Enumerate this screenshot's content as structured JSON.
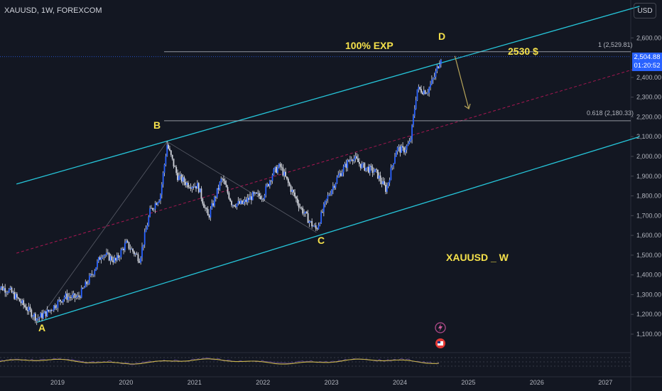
{
  "header": {
    "title": "XAUUSD, 1W, FOREXCOM",
    "currency_button": "USD"
  },
  "price_tag": {
    "price": "2,504.88",
    "countdown": "01:20:52"
  },
  "colors": {
    "background": "#131722",
    "channel": "#26c6da",
    "candle": "#2962ff",
    "candle_wick": "#e0e3eb",
    "midline": "#c2185b",
    "fib_line": "#b2b5be",
    "annotation_text": "#f5e14b",
    "projection_arrow": "#b8a55a",
    "oscillator": "#c9b54a",
    "axis_text": "#b2b5be",
    "price_tag_bg": "#2962ff"
  },
  "annotations": {
    "point_a": "A",
    "point_b": "B",
    "point_c": "C",
    "point_d": "D",
    "exp_label": "100% EXP",
    "target_label": "2530 $",
    "symbol_label": "XAUUSD _ W",
    "fib_1": "1 (2,529.81)",
    "fib_0618": "0.618 (2,180.33)"
  },
  "chart_data": {
    "type": "candlestick",
    "title": "XAUUSD, 1W, FOREXCOM",
    "x_ticks": [
      "2019",
      "2020",
      "2021",
      "2022",
      "2023",
      "2024",
      "2025",
      "2026",
      "2027"
    ],
    "y_ticks": [
      "1,100.00",
      "1,200.00",
      "1,300.00",
      "1,400.00",
      "1,500.00",
      "1,600.00",
      "1,700.00",
      "1,800.00",
      "1,900.00",
      "2,000.00",
      "2,100.00",
      "2,200.00",
      "2,300.00",
      "2,400.00",
      "2,600.00"
    ],
    "y_range": [
      1040,
      2700
    ],
    "x_range": [
      2018.1,
      2027.5
    ],
    "price_path": [
      [
        2018.1,
        1345
      ],
      [
        2018.3,
        1320
      ],
      [
        2018.55,
        1230
      ],
      [
        2018.7,
        1180
      ],
      [
        2018.85,
        1210
      ],
      [
        2019.1,
        1290
      ],
      [
        2019.3,
        1285
      ],
      [
        2019.5,
        1400
      ],
      [
        2019.65,
        1510
      ],
      [
        2019.85,
        1470
      ],
      [
        2020.0,
        1560
      ],
      [
        2020.2,
        1480
      ],
      [
        2020.35,
        1720
      ],
      [
        2020.5,
        1800
      ],
      [
        2020.6,
        2060
      ],
      [
        2020.75,
        1900
      ],
      [
        2020.9,
        1860
      ],
      [
        2021.05,
        1850
      ],
      [
        2021.2,
        1690
      ],
      [
        2021.4,
        1890
      ],
      [
        2021.55,
        1760
      ],
      [
        2021.7,
        1760
      ],
      [
        2021.85,
        1800
      ],
      [
        2022.0,
        1800
      ],
      [
        2022.15,
        1920
      ],
      [
        2022.25,
        1950
      ],
      [
        2022.4,
        1840
      ],
      [
        2022.55,
        1740
      ],
      [
        2022.7,
        1660
      ],
      [
        2022.78,
        1630
      ],
      [
        2022.95,
        1800
      ],
      [
        2023.1,
        1900
      ],
      [
        2023.3,
        2000
      ],
      [
        2023.45,
        1950
      ],
      [
        2023.65,
        1920
      ],
      [
        2023.8,
        1830
      ],
      [
        2023.95,
        2040
      ],
      [
        2024.05,
        2030
      ],
      [
        2024.15,
        2070
      ],
      [
        2024.25,
        2340
      ],
      [
        2024.4,
        2330
      ],
      [
        2024.5,
        2400
      ],
      [
        2024.6,
        2505
      ]
    ],
    "channel_upper": [
      [
        2018.4,
        1860
      ],
      [
        2027.5,
        2760
      ]
    ],
    "channel_lower": [
      [
        2018.7,
        1160
      ],
      [
        2027.5,
        2100
      ]
    ],
    "channel_mid": [
      [
        2018.4,
        1510
      ],
      [
        2027.5,
        2450
      ]
    ],
    "fib_levels": [
      {
        "label": "1 (2,529.81)",
        "value": 2529.81
      },
      {
        "label": "0.618 (2,180.33)",
        "value": 2180.33
      }
    ],
    "wave_points": [
      {
        "label": "A",
        "x": 2018.7,
        "y": 1160
      },
      {
        "label": "B",
        "x": 2020.6,
        "y": 2075
      },
      {
        "label": "C",
        "x": 2022.78,
        "y": 1615
      },
      {
        "label": "D",
        "x": 2024.72,
        "y": 2530
      }
    ],
    "last_price": 2504.88,
    "grid": false
  }
}
